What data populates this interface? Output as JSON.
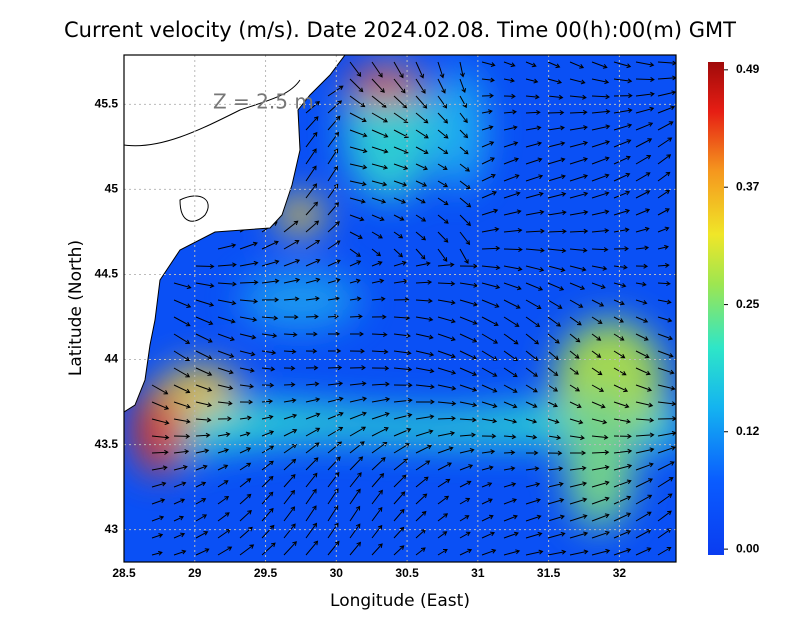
{
  "title": "Current velocity (m/s). Date 2024.02.08. Time 00(h):00(m) GMT",
  "annotation": "Z = 2.5 m",
  "x_axis": {
    "label": "Longitude (East)",
    "lim": [
      28.5,
      32.4
    ],
    "ticks": [
      28.5,
      29,
      29.5,
      30,
      30.5,
      31,
      31.5,
      32
    ]
  },
  "y_axis": {
    "label": "Latitude (North)",
    "lim": [
      42.81,
      45.79
    ],
    "ticks": [
      43,
      43.5,
      44,
      44.5,
      45,
      45.5
    ]
  },
  "colorbar": {
    "lim": [
      -0.006,
      0.498
    ],
    "ticks": [
      {
        "value": 0,
        "label": "0.00"
      },
      0.12,
      0.25,
      0.37,
      0.49
    ]
  }
}
